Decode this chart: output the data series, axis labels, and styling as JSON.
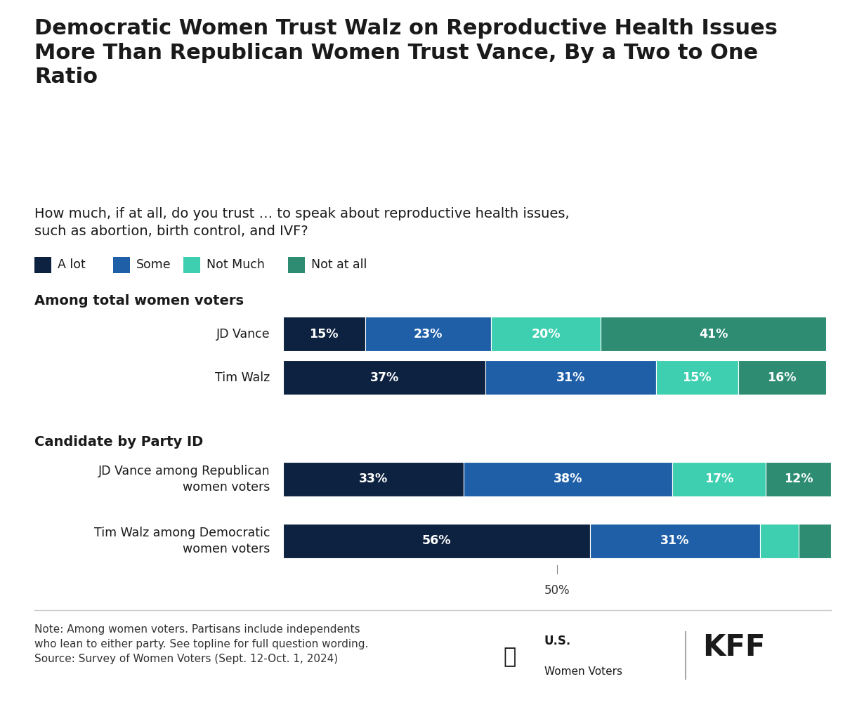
{
  "title": "Democratic Women Trust Walz on Reproductive Health Issues\nMore Than Republican Women Trust Vance, By a Two to One\nRatio",
  "subtitle": "How much, if at all, do you trust … to speak about reproductive health issues,\nsuch as abortion, birth control, and IVF?",
  "legend_labels": [
    "A lot",
    "Some",
    "Not Much",
    "Not at all"
  ],
  "colors": [
    "#0d2240",
    "#1e5fa8",
    "#3ecfb0",
    "#2d8c72"
  ],
  "section1_label": "Among total women voters",
  "section2_label": "Candidate by Party ID",
  "bars": [
    {
      "label": "JD Vance",
      "values": [
        15,
        23,
        20,
        41
      ],
      "pct_labels": [
        "15%",
        "23%",
        "20%",
        "41%"
      ]
    },
    {
      "label": "Tim Walz",
      "values": [
        37,
        31,
        15,
        16
      ],
      "pct_labels": [
        "37%",
        "31%",
        "15%",
        "16%"
      ]
    },
    {
      "label": "JD Vance among Republican\nwomen voters",
      "values": [
        33,
        38,
        17,
        12
      ],
      "pct_labels": [
        "33%",
        "38%",
        "17%",
        "12%"
      ]
    },
    {
      "label": "Tim Walz among Democratic\nwomen voters",
      "values": [
        56,
        31,
        7,
        6
      ],
      "pct_labels": [
        "56%",
        "31%",
        "",
        ""
      ]
    }
  ],
  "note_line1": "Note: Among women voters. Partisans include independents",
  "note_line2": "who lean to either party. See topline for full question wording.",
  "note_line3": "Source: Survey of Women Voters (Sept. 12-Oct. 1, 2024)",
  "fifty_pct_label": "50%",
  "background_color": "#ffffff",
  "text_color": "#1a1a1a"
}
